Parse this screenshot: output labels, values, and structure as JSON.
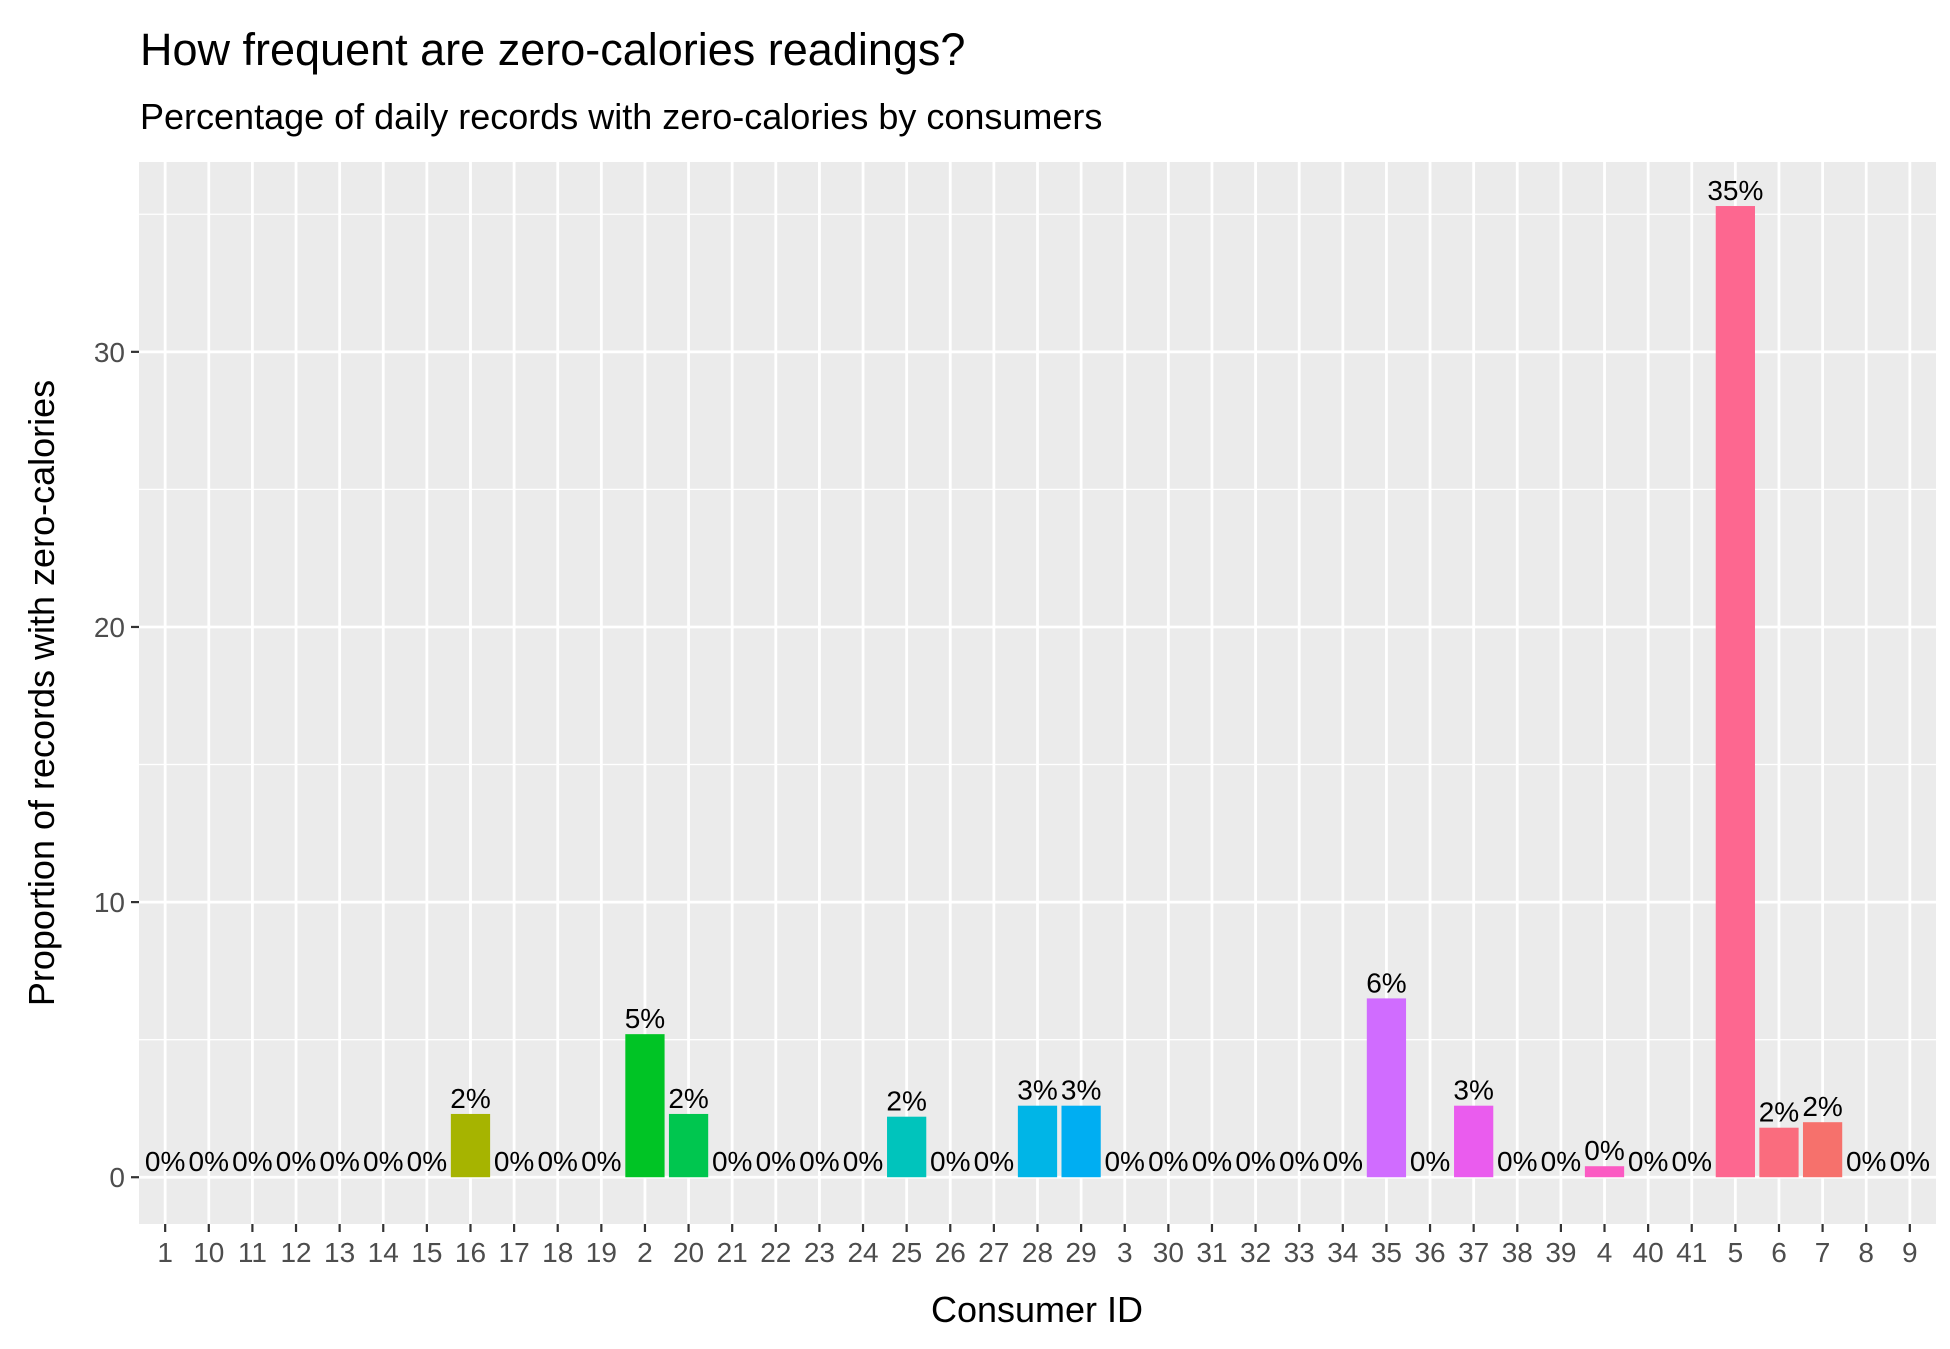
{
  "chart_data": {
    "type": "bar",
    "title": "How frequent are zero-calories readings?",
    "subtitle": "Percentage of daily records with zero-calories by consumers",
    "xlabel": "Consumer ID",
    "ylabel": "Proportion of records with zero-calories",
    "ylim": [
      -1.7,
      36.9
    ],
    "yticks": [
      0,
      10,
      20,
      30
    ],
    "grid": true,
    "legend": "none",
    "categories": [
      "1",
      "10",
      "11",
      "12",
      "13",
      "14",
      "15",
      "16",
      "17",
      "18",
      "19",
      "2",
      "20",
      "21",
      "22",
      "23",
      "24",
      "25",
      "26",
      "27",
      "28",
      "29",
      "3",
      "30",
      "31",
      "32",
      "33",
      "34",
      "35",
      "36",
      "37",
      "38",
      "39",
      "4",
      "40",
      "41",
      "5",
      "6",
      "7",
      "8",
      "9"
    ],
    "values": [
      0,
      0,
      0,
      0,
      0,
      0,
      0,
      2.3,
      0,
      0,
      0,
      5.2,
      2.3,
      0,
      0,
      0,
      0,
      2.2,
      0,
      0,
      2.6,
      2.6,
      0,
      0,
      0,
      0,
      0,
      0,
      6.5,
      0,
      2.6,
      0,
      0,
      0.4,
      0,
      0,
      35.3,
      1.8,
      2.0,
      0,
      0
    ],
    "labels": [
      "0%",
      "0%",
      "0%",
      "0%",
      "0%",
      "0%",
      "0%",
      "2%",
      "0%",
      "0%",
      "0%",
      "5%",
      "2%",
      "0%",
      "0%",
      "0%",
      "0%",
      "2%",
      "0%",
      "0%",
      "3%",
      "3%",
      "0%",
      "0%",
      "0%",
      "0%",
      "0%",
      "0%",
      "6%",
      "0%",
      "3%",
      "0%",
      "0%",
      "0%",
      "0%",
      "0%",
      "35%",
      "2%",
      "2%",
      "0%",
      "0%"
    ],
    "colors": [
      "#F8766D",
      "#F17E4E",
      "#E98B28",
      "#E19500",
      "#D69E00",
      "#C8A700",
      "#B8AE00",
      "#A6B400",
      "#90B900",
      "#76BE00",
      "#4EC200",
      "#00C425",
      "#00C64F",
      "#00C76B",
      "#00C782",
      "#00C797",
      "#00C6AB",
      "#00C4BC",
      "#00C0CC",
      "#00BBDA",
      "#00B5E7",
      "#00AEF2",
      "#00A6FB",
      "#2B9EFF",
      "#6A95FF",
      "#8E8BFF",
      "#A981FF",
      "#BF76FF",
      "#D06CFF",
      "#DF62F9",
      "#EA5CEE",
      "#F25AE1",
      "#F75AD3",
      "#FB5BC3",
      "#FD5EB3",
      "#FE62A2",
      "#FD6790",
      "#FA6C7E",
      "#F6716C",
      "#F57565",
      "#F8766D"
    ]
  }
}
